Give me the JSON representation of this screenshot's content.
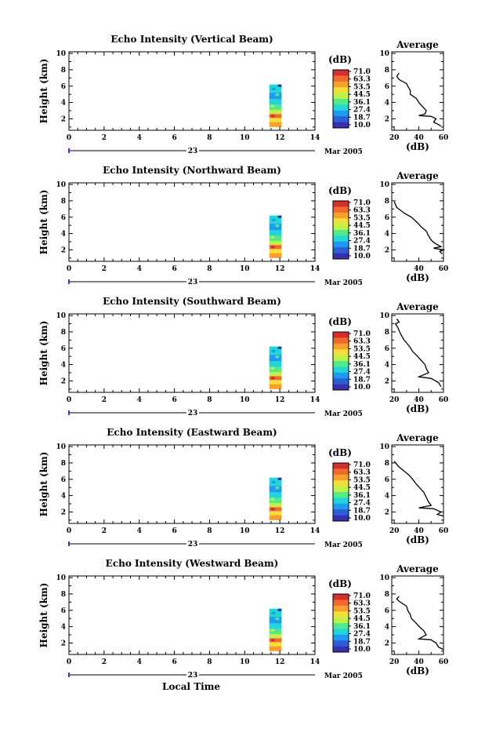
{
  "x_axis_label": "Local Time",
  "date_day": "23",
  "date_month": "Mar 2005",
  "colorbar": {
    "unit": "(dB)",
    "labels": [
      "71.0",
      "63.3",
      "53.5",
      "44.5",
      "36.1",
      "27.4",
      "18.7",
      "10.0"
    ],
    "colors": [
      "#d22f2f",
      "#ef6a2c",
      "#f8a02e",
      "#f3df3a",
      "#bff247",
      "#54ea8a",
      "#21d6d6",
      "#1e9af0",
      "#2a5fd8",
      "#3630b0"
    ]
  },
  "chart_data": [
    {
      "type": "heatmap",
      "title": "Echo Intensity (Vertical Beam)",
      "ylabel": "Height (km)",
      "x_ticks": [
        "0",
        "2",
        "4",
        "6",
        "8",
        "10",
        "12",
        "14"
      ],
      "y_ticks": [
        "2",
        "4",
        "6",
        "8",
        "10"
      ],
      "xlim": [
        0,
        14
      ],
      "ylim": [
        0.6,
        10.2
      ],
      "echo_region": {
        "time_start": 11.4,
        "time_end": 12.1,
        "height_top": 6.2,
        "height_bottom": 1.0
      },
      "profile": {
        "title": "Average",
        "xlabel": "(dB)",
        "x_ticks": [
          "20",
          "40",
          "60"
        ],
        "y_ticks": [
          "2",
          "4",
          "6",
          "8",
          "10"
        ],
        "xlim": [
          18,
          60
        ],
        "ylim": [
          0.6,
          10.2
        ],
        "points": [
          [
            24,
            7.6
          ],
          [
            22,
            7.2
          ],
          [
            24,
            6.8
          ],
          [
            30,
            6.3
          ],
          [
            31,
            6.0
          ],
          [
            33,
            5.5
          ],
          [
            33,
            5.0
          ],
          [
            38,
            4.5
          ],
          [
            40,
            4.0
          ],
          [
            43,
            3.5
          ],
          [
            46,
            3.0
          ],
          [
            45,
            2.6
          ],
          [
            40,
            2.4
          ],
          [
            50,
            2.3
          ],
          [
            54,
            2.0
          ],
          [
            52,
            1.6
          ],
          [
            56,
            1.3
          ],
          [
            58,
            1.1
          ]
        ]
      }
    },
    {
      "type": "heatmap",
      "title": "Echo Intensity (Northward Beam)",
      "ylabel": "Height (km)",
      "x_ticks": [
        "0",
        "2",
        "4",
        "6",
        "8",
        "10",
        "12",
        "14"
      ],
      "y_ticks": [
        "2",
        "4",
        "6",
        "8",
        "10"
      ],
      "xlim": [
        0,
        14
      ],
      "ylim": [
        0.6,
        10.2
      ],
      "echo_region": {
        "time_start": 11.4,
        "time_end": 12.1,
        "height_top": 6.2,
        "height_bottom": 1.0
      },
      "profile": {
        "title": "Average",
        "xlabel": "(dB)",
        "x_ticks": [
          "40",
          "60"
        ],
        "y_ticks": [
          "2",
          "4",
          "6",
          "8",
          "10"
        ],
        "xlim": [
          18,
          60
        ],
        "ylim": [
          0.6,
          10.2
        ],
        "points": [
          [
            20,
            7.9
          ],
          [
            22,
            7.2
          ],
          [
            28,
            6.5
          ],
          [
            34,
            6.0
          ],
          [
            39,
            5.3
          ],
          [
            42,
            4.8
          ],
          [
            46,
            4.3
          ],
          [
            48,
            3.7
          ],
          [
            50,
            3.2
          ],
          [
            53,
            2.8
          ],
          [
            58,
            2.4
          ],
          [
            52,
            2.2
          ],
          [
            60,
            2.0
          ],
          [
            57,
            1.8
          ],
          [
            59,
            1.5
          ]
        ]
      }
    },
    {
      "type": "heatmap",
      "title": "Echo Intensity (Southward Beam)",
      "ylabel": "Height (km)",
      "x_ticks": [
        "0",
        "2",
        "4",
        "6",
        "8",
        "10",
        "12",
        "14"
      ],
      "y_ticks": [
        "2",
        "4",
        "6",
        "8",
        "10"
      ],
      "xlim": [
        0,
        14
      ],
      "ylim": [
        0.6,
        10.2
      ],
      "echo_region": {
        "time_start": 11.4,
        "time_end": 12.1,
        "height_top": 6.2,
        "height_bottom": 1.0
      },
      "profile": {
        "title": "Average",
        "xlabel": "(dB)",
        "x_ticks": [
          "20",
          "40",
          "60"
        ],
        "y_ticks": [
          "2",
          "4",
          "6",
          "8",
          "10"
        ],
        "xlim": [
          18,
          60
        ],
        "ylim": [
          0.6,
          10.2
        ],
        "points": [
          [
            22,
            9.6
          ],
          [
            24,
            9.2
          ],
          [
            21,
            9.0
          ],
          [
            23,
            8.5
          ],
          [
            25,
            7.8
          ],
          [
            28,
            7.0
          ],
          [
            32,
            6.3
          ],
          [
            35,
            5.6
          ],
          [
            39,
            5.0
          ],
          [
            42,
            4.5
          ],
          [
            45,
            4.0
          ],
          [
            46,
            3.5
          ],
          [
            48,
            3.0
          ],
          [
            40,
            2.5
          ],
          [
            50,
            2.3
          ],
          [
            56,
            1.8
          ],
          [
            58,
            1.3
          ]
        ]
      }
    },
    {
      "type": "heatmap",
      "title": "Echo Intensity (Eastward Beam)",
      "ylabel": "Height (km)",
      "x_ticks": [
        "0",
        "2",
        "4",
        "6",
        "8",
        "10",
        "12",
        "14"
      ],
      "y_ticks": [
        "2",
        "4",
        "6",
        "8",
        "10"
      ],
      "xlim": [
        0,
        14
      ],
      "ylim": [
        0.6,
        10.2
      ],
      "echo_region": {
        "time_start": 11.4,
        "time_end": 12.1,
        "height_top": 6.2,
        "height_bottom": 1.0
      },
      "profile": {
        "title": "Average",
        "xlabel": "(dB)",
        "x_ticks": [
          "20",
          "40",
          "60"
        ],
        "y_ticks": [
          "2",
          "4",
          "6",
          "8",
          "10"
        ],
        "xlim": [
          18,
          60
        ],
        "ylim": [
          0.6,
          10.2
        ],
        "points": [
          [
            20,
            8.2
          ],
          [
            24,
            7.5
          ],
          [
            28,
            7.0
          ],
          [
            32,
            6.5
          ],
          [
            35,
            6.0
          ],
          [
            38,
            5.4
          ],
          [
            41,
            4.9
          ],
          [
            44,
            4.4
          ],
          [
            46,
            3.8
          ],
          [
            48,
            3.2
          ],
          [
            50,
            2.8
          ],
          [
            40,
            2.5
          ],
          [
            52,
            2.4
          ],
          [
            58,
            2.0
          ],
          [
            55,
            1.7
          ],
          [
            60,
            1.5
          ]
        ]
      }
    },
    {
      "type": "heatmap",
      "title": "Echo Intensity (Westward Beam)",
      "ylabel": "Height (km)",
      "x_ticks": [
        "0",
        "2",
        "4",
        "6",
        "8",
        "10",
        "12",
        "14"
      ],
      "y_ticks": [
        "2",
        "4",
        "6",
        "8",
        "10"
      ],
      "xlim": [
        0,
        14
      ],
      "ylim": [
        0.6,
        10.2
      ],
      "echo_region": {
        "time_start": 11.4,
        "time_end": 12.1,
        "height_top": 6.2,
        "height_bottom": 1.0
      },
      "profile": {
        "title": "Average",
        "xlabel": "(dB)",
        "x_ticks": [
          "20",
          "40",
          "60"
        ],
        "y_ticks": [
          "2",
          "4",
          "6",
          "8",
          "10"
        ],
        "xlim": [
          18,
          60
        ],
        "ylim": [
          0.6,
          10.2
        ],
        "points": [
          [
            24,
            7.7
          ],
          [
            22,
            7.4
          ],
          [
            24,
            7.1
          ],
          [
            30,
            6.5
          ],
          [
            31,
            6.0
          ],
          [
            33,
            5.5
          ],
          [
            34,
            5.0
          ],
          [
            38,
            4.4
          ],
          [
            41,
            3.9
          ],
          [
            44,
            3.5
          ],
          [
            46,
            3.0
          ],
          [
            40,
            2.5
          ],
          [
            50,
            2.4
          ],
          [
            54,
            2.0
          ],
          [
            56,
            1.5
          ],
          [
            60,
            1.2
          ]
        ]
      }
    }
  ]
}
